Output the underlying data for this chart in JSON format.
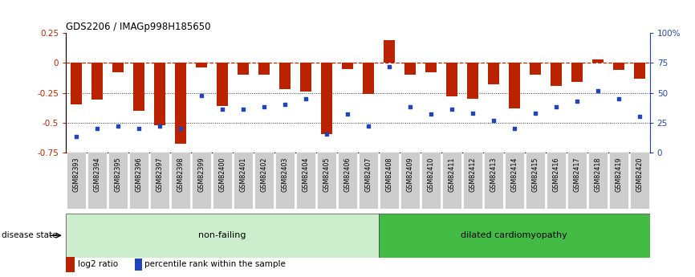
{
  "title": "GDS2206 / IMAGp998H185650",
  "samples": [
    "GSM82393",
    "GSM82394",
    "GSM82395",
    "GSM82396",
    "GSM82397",
    "GSM82398",
    "GSM82399",
    "GSM82400",
    "GSM82401",
    "GSM82402",
    "GSM82403",
    "GSM82404",
    "GSM82405",
    "GSM82406",
    "GSM82407",
    "GSM82408",
    "GSM82409",
    "GSM82410",
    "GSM82411",
    "GSM82412",
    "GSM82413",
    "GSM82414",
    "GSM82415",
    "GSM82416",
    "GSM82417",
    "GSM82418",
    "GSM82419",
    "GSM82420"
  ],
  "log2_ratio": [
    -0.35,
    -0.31,
    -0.08,
    -0.4,
    -0.52,
    -0.68,
    -0.04,
    -0.36,
    -0.1,
    -0.1,
    -0.22,
    -0.24,
    -0.6,
    -0.05,
    -0.26,
    0.19,
    -0.1,
    -0.08,
    -0.28,
    -0.3,
    -0.18,
    -0.38,
    -0.1,
    -0.19,
    -0.16,
    0.03,
    -0.06,
    -0.13
  ],
  "percentile_pct": [
    13,
    20,
    22,
    20,
    22,
    20,
    48,
    36,
    36,
    38,
    40,
    45,
    15,
    32,
    22,
    72,
    38,
    32,
    36,
    33,
    27,
    20,
    33,
    38,
    43,
    52,
    45,
    30
  ],
  "non_failing_count": 15,
  "dilated_count": 13,
  "ylim_left": [
    -0.75,
    0.25
  ],
  "yticks_left": [
    -0.75,
    -0.5,
    -0.25,
    0,
    0.25
  ],
  "yticks_right": [
    0,
    25,
    50,
    75,
    100
  ],
  "bar_color": "#bb2200",
  "dot_color": "#2244bb",
  "nf_bg_color": "#cceecc",
  "dc_bg_color": "#44bb44",
  "label_bg_color": "#cccccc",
  "hline_dashed_color": "#cc2200",
  "hline_dot_color": "#333333",
  "background_color": "#ffffff"
}
